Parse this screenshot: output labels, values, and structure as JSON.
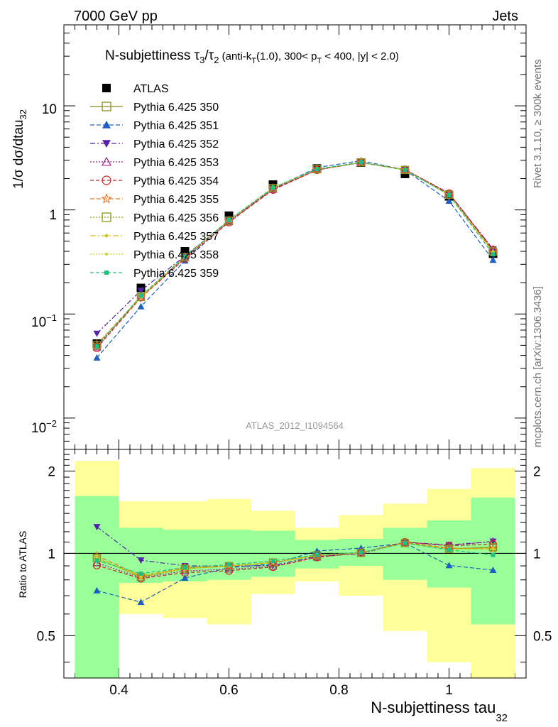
{
  "header": {
    "left": "7000 GeV pp",
    "right": "Jets"
  },
  "side_labels": {
    "rivet": "Rivet 3.1.10, ≥ 300k events",
    "source": "mcplots.cern.ch [arXiv:1306.3436]"
  },
  "watermark": "ATLAS_2012_I1094564",
  "title": {
    "main": "N-subjettiness τ",
    "sub3": "3",
    "slash": "/τ",
    "sub2": "2",
    "rest1": " (anti-k",
    "subT": "T",
    "rest2": "(1.0), 300< p",
    "subT2": "T",
    "rest3": " < 400, |y| < 2.0)"
  },
  "axes": {
    "ylabel_top_main": "1/σ dσ/dtau",
    "ylabel_top_sub": "32",
    "ylabel_bottom": "Ratio to ATLAS",
    "xlabel_main": "N-subjettiness tau",
    "xlabel_sub": "32",
    "xticks": [
      "0.4",
      "0.6",
      "0.8",
      "1"
    ],
    "ratio_ticks": [
      "0.5",
      "1",
      "2"
    ],
    "ytick_10": "10",
    "ytick_1": "1"
  },
  "colors": {
    "atlas": "#000000",
    "350": "#8b8b1e",
    "351": "#1f5fbf",
    "352": "#5522aa",
    "353": "#a0208a",
    "354": "#cc2222",
    "355": "#e8741c",
    "356": "#8a9a10",
    "357": "#d4c010",
    "358": "#c8d820",
    "359": "#20c080",
    "band_inner": "#99ff99",
    "band_outer": "#ffff99"
  },
  "chart_data": {
    "type": "line",
    "x_edges": [
      0.32,
      0.4,
      0.48,
      0.56,
      0.64,
      0.72,
      0.8,
      0.88,
      0.96,
      1.04,
      1.12
    ],
    "x": [
      0.36,
      0.44,
      0.52,
      0.6,
      0.68,
      0.76,
      0.84,
      0.92,
      1.0,
      1.08
    ],
    "xlim": [
      0.3,
      1.14
    ],
    "ylim_top": [
      0.005,
      60
    ],
    "ylim_ratio": [
      0.35,
      2.4
    ],
    "yscale": "log",
    "data": {
      "name": "ATLAS",
      "values": [
        0.052,
        0.178,
        0.4,
        0.88,
        1.75,
        2.5,
        2.85,
        2.22,
        1.35,
        0.38
      ]
    },
    "band_inner_ratio": [
      [
        0.31,
        1.62
      ],
      [
        0.78,
        1.24
      ],
      [
        0.79,
        1.22
      ],
      [
        0.8,
        1.22
      ],
      [
        0.82,
        1.21
      ],
      [
        0.88,
        1.12
      ],
      [
        0.9,
        1.13
      ],
      [
        0.8,
        1.24
      ],
      [
        0.75,
        1.32
      ],
      [
        0.55,
        1.6
      ]
    ],
    "band_outer_ratio": [
      [
        0.31,
        2.18
      ],
      [
        0.6,
        1.55
      ],
      [
        0.58,
        1.55
      ],
      [
        0.55,
        1.58
      ],
      [
        0.71,
        1.43
      ],
      [
        0.79,
        1.24
      ],
      [
        0.7,
        1.38
      ],
      [
        0.52,
        1.52
      ],
      [
        0.4,
        1.72
      ],
      [
        0.31,
        2.05
      ]
    ],
    "series": [
      {
        "name": "Pythia 6.425 350",
        "marker": "open-square",
        "dash": "",
        "values": [
          0.05,
          0.146,
          0.352,
          0.79,
          1.62,
          2.46,
          2.86,
          2.42,
          1.4,
          0.4
        ]
      },
      {
        "name": "Pythia 6.425 351",
        "marker": "filled-triangle-up",
        "dash": "6,3",
        "values": [
          0.038,
          0.118,
          0.325,
          0.78,
          1.6,
          2.55,
          2.98,
          2.42,
          1.22,
          0.33
        ]
      },
      {
        "name": "Pythia 6.425 352",
        "marker": "filled-triangle-down",
        "dash": "7,3,2,3",
        "values": [
          0.065,
          0.168,
          0.36,
          0.79,
          1.58,
          2.44,
          2.84,
          2.44,
          1.45,
          0.42
        ]
      },
      {
        "name": "Pythia 6.425 353",
        "marker": "open-triangle-up",
        "dash": "2,2",
        "values": [
          0.048,
          0.145,
          0.345,
          0.77,
          1.57,
          2.42,
          2.86,
          2.44,
          1.44,
          0.42
        ]
      },
      {
        "name": "Pythia 6.425 354",
        "marker": "open-circle",
        "dash": "5,3",
        "values": [
          0.047,
          0.144,
          0.34,
          0.76,
          1.56,
          2.42,
          2.86,
          2.44,
          1.44,
          0.41
        ]
      },
      {
        "name": "Pythia 6.425 355",
        "marker": "open-star",
        "dash": "6,3",
        "values": [
          0.051,
          0.147,
          0.355,
          0.79,
          1.62,
          2.45,
          2.87,
          2.43,
          1.41,
          0.395
        ]
      },
      {
        "name": "Pythia 6.425 356",
        "marker": "open-square",
        "dash": "2,2",
        "values": [
          0.05,
          0.146,
          0.352,
          0.79,
          1.62,
          2.46,
          2.86,
          2.42,
          1.4,
          0.4
        ]
      },
      {
        "name": "Pythia 6.425 357",
        "marker": "small-diamond",
        "dash": "8,3,2,3",
        "values": [
          0.05,
          0.146,
          0.352,
          0.79,
          1.62,
          2.46,
          2.86,
          2.42,
          1.4,
          0.395
        ]
      },
      {
        "name": "Pythia 6.425 358",
        "marker": "small-dot",
        "dash": "2,2",
        "values": [
          0.05,
          0.147,
          0.353,
          0.79,
          1.62,
          2.46,
          2.86,
          2.42,
          1.4,
          0.395
        ]
      },
      {
        "name": "Pythia 6.425 359",
        "marker": "filled-square-small",
        "dash": "5,3",
        "values": [
          0.049,
          0.15,
          0.355,
          0.8,
          1.64,
          2.47,
          2.87,
          2.42,
          1.39,
          0.375
        ]
      }
    ]
  }
}
